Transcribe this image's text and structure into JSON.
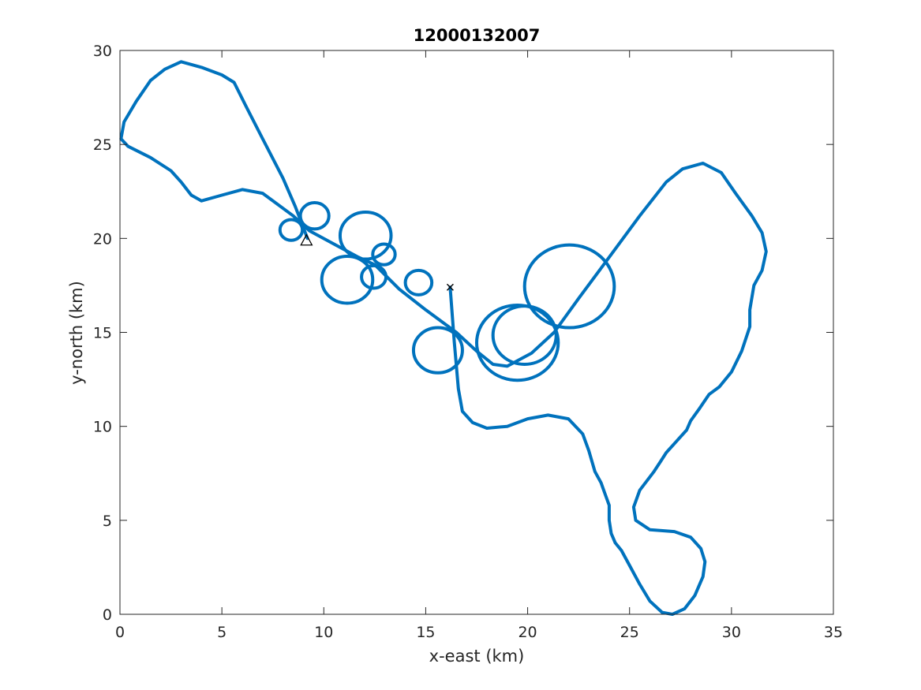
{
  "chart_data": {
    "type": "line",
    "title": "12000132007",
    "xlabel": "x-east (km)",
    "ylabel": "y-north (km)",
    "xlim": [
      0,
      35
    ],
    "ylim": [
      0,
      30
    ],
    "xticks": [
      0,
      5,
      10,
      15,
      20,
      25,
      30,
      35
    ],
    "yticks": [
      0,
      5,
      10,
      15,
      20,
      25,
      30
    ],
    "grid": false,
    "line_color": "#0072BD",
    "marker_color": "#000000",
    "series": [
      {
        "type": "track",
        "points": [
          [
            16.2,
            17.4
          ],
          [
            16.4,
            14.5
          ],
          [
            16.6,
            12.0
          ],
          [
            16.8,
            10.8
          ],
          [
            17.3,
            10.2
          ],
          [
            18.0,
            9.9
          ],
          [
            19.0,
            10.0
          ],
          [
            20.0,
            10.4
          ],
          [
            21.0,
            10.6
          ],
          [
            22.0,
            10.4
          ],
          [
            22.7,
            9.6
          ],
          [
            23.0,
            8.7
          ],
          [
            23.3,
            7.6
          ],
          [
            23.6,
            7.0
          ],
          [
            23.8,
            6.4
          ],
          [
            24.0,
            5.8
          ],
          [
            24.0,
            5.0
          ],
          [
            24.1,
            4.3
          ],
          [
            24.3,
            3.8
          ],
          [
            24.6,
            3.4
          ],
          [
            25.0,
            2.6
          ],
          [
            25.5,
            1.6
          ],
          [
            26.0,
            0.7
          ],
          [
            26.6,
            0.1
          ],
          [
            27.1,
            0.0
          ],
          [
            27.7,
            0.3
          ],
          [
            28.2,
            1.0
          ],
          [
            28.6,
            2.0
          ],
          [
            28.7,
            2.8
          ],
          [
            28.5,
            3.5
          ],
          [
            28.0,
            4.1
          ],
          [
            27.2,
            4.4
          ],
          [
            26.0,
            4.5
          ],
          [
            25.3,
            5.0
          ],
          [
            25.2,
            5.7
          ],
          [
            25.5,
            6.6
          ],
          [
            26.2,
            7.6
          ],
          [
            26.5,
            8.1
          ],
          [
            26.8,
            8.6
          ],
          [
            27.3,
            9.2
          ],
          [
            27.8,
            9.8
          ],
          [
            28.0,
            10.3
          ],
          [
            28.4,
            10.9
          ],
          [
            28.9,
            11.7
          ],
          [
            29.4,
            12.1
          ],
          [
            30.0,
            12.9
          ],
          [
            30.5,
            14.0
          ],
          [
            30.9,
            15.3
          ],
          [
            30.9,
            16.2
          ],
          [
            31.1,
            17.5
          ],
          [
            31.5,
            18.3
          ],
          [
            31.7,
            19.3
          ],
          [
            31.5,
            20.3
          ],
          [
            31.0,
            21.2
          ],
          [
            30.2,
            22.4
          ],
          [
            29.5,
            23.5
          ],
          [
            28.6,
            24.0
          ],
          [
            27.6,
            23.7
          ],
          [
            26.8,
            23.0
          ],
          [
            25.5,
            21.2
          ],
          [
            24.0,
            19.0
          ],
          [
            22.5,
            16.8
          ],
          [
            21.3,
            15.0
          ],
          [
            20.2,
            13.9
          ],
          [
            19.0,
            13.2
          ],
          [
            18.3,
            13.3
          ],
          [
            17.5,
            14.0
          ],
          [
            16.5,
            15.0
          ],
          [
            15.0,
            16.2
          ],
          [
            13.7,
            17.3
          ],
          [
            12.5,
            18.6
          ],
          [
            11.7,
            19.0
          ],
          [
            10.5,
            19.7
          ],
          [
            9.3,
            20.4
          ],
          [
            8.5,
            21.2
          ],
          [
            7.0,
            22.4
          ],
          [
            6.0,
            22.6
          ],
          [
            5.0,
            22.3
          ],
          [
            4.0,
            22.0
          ],
          [
            3.5,
            22.3
          ],
          [
            3.0,
            23.0
          ],
          [
            2.5,
            23.6
          ],
          [
            1.5,
            24.3
          ],
          [
            0.4,
            24.9
          ],
          [
            0.05,
            25.3
          ],
          [
            0.2,
            26.2
          ],
          [
            0.8,
            27.3
          ],
          [
            1.5,
            28.4
          ],
          [
            2.2,
            29.0
          ],
          [
            3.0,
            29.4
          ],
          [
            4.0,
            29.1
          ],
          [
            5.0,
            28.7
          ],
          [
            5.6,
            28.3
          ],
          [
            6.2,
            27.0
          ],
          [
            7.0,
            25.3
          ],
          [
            8.0,
            23.2
          ],
          [
            8.6,
            21.7
          ],
          [
            9.2,
            20.0
          ]
        ],
        "loops": [
          {
            "center": [
              8.4,
              20.45
            ],
            "r": 0.55
          },
          {
            "center": [
              9.55,
              21.2
            ],
            "r": 0.7
          },
          {
            "center": [
              12.05,
              20.15
            ],
            "r": 1.25
          },
          {
            "center": [
              12.95,
              19.15
            ],
            "r": 0.55
          },
          {
            "center": [
              11.15,
              17.8
            ],
            "r": 1.25
          },
          {
            "center": [
              12.45,
              17.95
            ],
            "r": 0.6
          },
          {
            "center": [
              14.65,
              17.65
            ],
            "r": 0.65
          },
          {
            "center": [
              15.6,
              14.05
            ],
            "r": 1.2
          },
          {
            "center": [
              19.5,
              14.45
            ],
            "r": 2.0
          },
          {
            "center": [
              19.85,
              14.85
            ],
            "r": 1.55
          },
          {
            "center": [
              22.05,
              17.45
            ],
            "r": 2.2
          }
        ]
      }
    ],
    "markers": [
      {
        "symbol": "triangle",
        "x": 9.15,
        "y": 19.9
      },
      {
        "symbol": "x",
        "x": 16.2,
        "y": 17.4
      }
    ]
  }
}
